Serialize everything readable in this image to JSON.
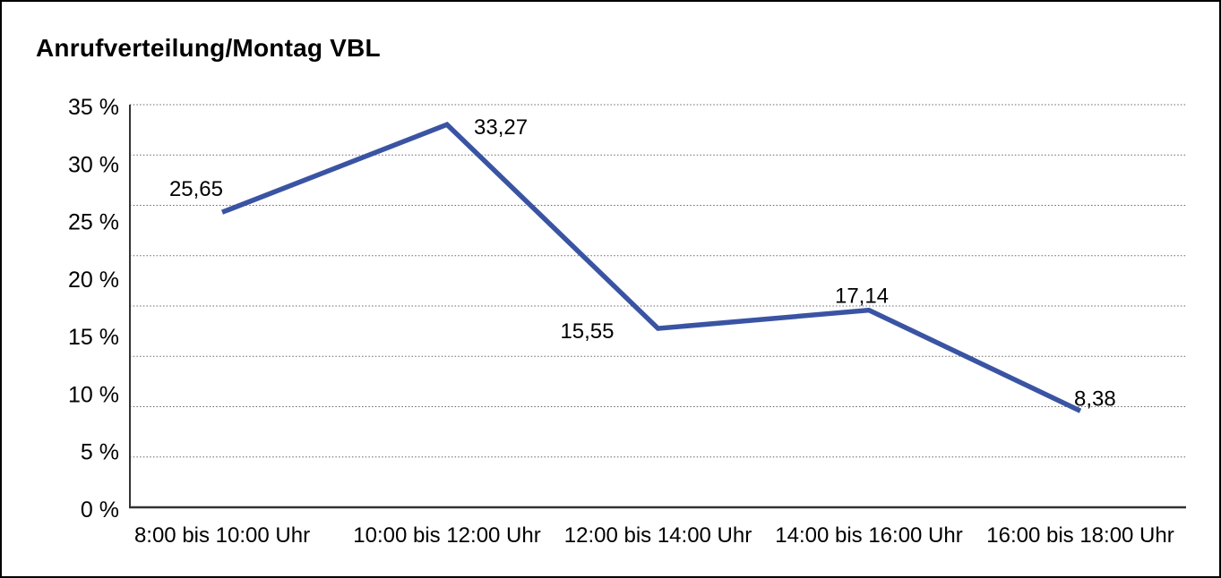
{
  "window": {
    "background": "#ffffff",
    "border_color": "#000000"
  },
  "chart_data": {
    "type": "line",
    "title": "Anrufverteilung/Montag VBL",
    "categories": [
      "8:00 bis 10:00 Uhr",
      "10:00 bis 12:00 Uhr",
      "12:00 bis 14:00 Uhr",
      "14:00 bis 16:00 Uhr",
      "16:00 bis 18:00 Uhr"
    ],
    "series": [
      {
        "name": "Anrufverteilung Montag VBL",
        "values": [
          25.65,
          33.27,
          15.55,
          17.14,
          8.38
        ],
        "color": "#3a54a3"
      }
    ],
    "data_labels": [
      "25,65",
      "33,27",
      "15,55",
      "17,14",
      "8,38"
    ],
    "xlabel": "",
    "ylabel": "",
    "ylim": [
      0,
      35
    ],
    "yticks": [
      {
        "value": 35,
        "label": "35 %"
      },
      {
        "value": 30,
        "label": "30 %"
      },
      {
        "value": 25,
        "label": "25 %"
      },
      {
        "value": 20,
        "label": "20 %"
      },
      {
        "value": 15,
        "label": "15 %"
      },
      {
        "value": 10,
        "label": "10 %"
      },
      {
        "value": 5,
        "label": "5 %"
      },
      {
        "value": 0,
        "label": "0 %"
      }
    ],
    "grid": "horizontal-dotted",
    "gridline_count": 9,
    "legend": "none"
  },
  "colors": {
    "line": "#3a54a3",
    "text": "#000000",
    "grid": "#666666",
    "axis": "#333333"
  }
}
